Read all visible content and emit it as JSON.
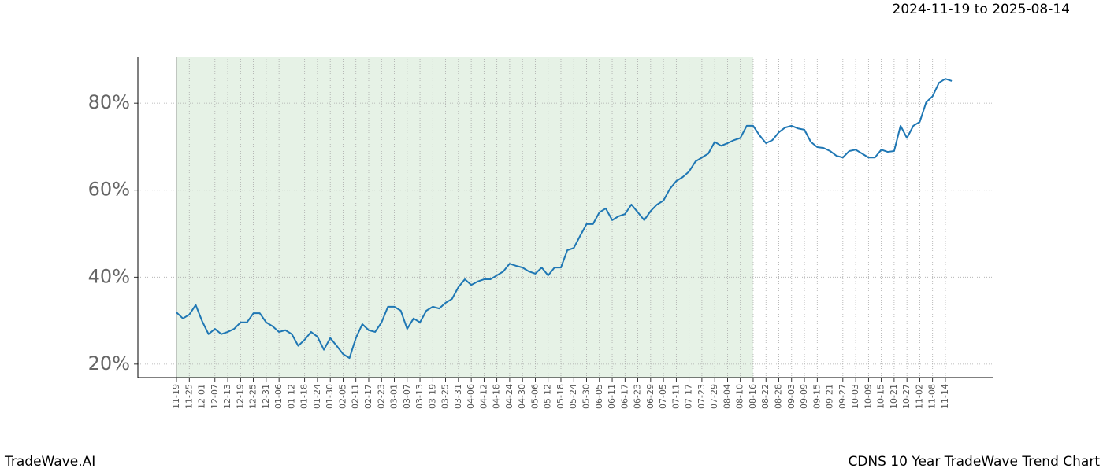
{
  "chart_data": {
    "type": "line",
    "title": "CDNS 10 Year TradeWave Trend Chart",
    "subtitle": "2024-11-19 to 2025-08-14",
    "watermark": "TradeWave.AI",
    "categories": [
      "11-19",
      null,
      "11-25",
      null,
      "12-01",
      null,
      "12-07",
      null,
      "12-13",
      null,
      "12-19",
      null,
      "12-25",
      null,
      "12-31",
      null,
      "01-06",
      null,
      "01-12",
      null,
      "01-18",
      null,
      "01-24",
      null,
      "01-30",
      null,
      "02-05",
      null,
      "02-11",
      null,
      "02-17",
      null,
      "02-23",
      null,
      "03-01",
      null,
      "03-07",
      null,
      "03-13",
      null,
      "03-19",
      null,
      "03-25",
      null,
      "03-31",
      null,
      "04-06",
      null,
      "04-12",
      null,
      "04-18",
      null,
      "04-24",
      null,
      "04-30",
      null,
      "05-06",
      null,
      "05-12",
      null,
      "05-18",
      null,
      "05-24",
      null,
      "05-30",
      null,
      "06-05",
      null,
      "06-11",
      null,
      "06-17",
      null,
      "06-23",
      null,
      "06-29",
      null,
      "07-05",
      null,
      "07-11",
      null,
      "07-17",
      null,
      "07-23",
      null,
      "07-29",
      null,
      "08-04",
      null,
      "08-10",
      null,
      "08-16",
      null,
      "08-22",
      null,
      "08-28",
      null,
      "09-03",
      null,
      "09-09",
      null,
      "09-15",
      null,
      "09-21",
      null,
      "09-27",
      null,
      "10-03",
      null,
      "10-09",
      null,
      "10-15",
      null,
      "10-21",
      null,
      "10-27",
      null,
      "11-02",
      null,
      "11-08",
      null,
      "11-14",
      null
    ],
    "series": [
      {
        "color": "#1f77b4",
        "values": [
          31.9,
          30.5,
          31.4,
          33.6,
          29.9,
          26.9,
          28.1,
          26.9,
          27.4,
          28.1,
          29.6,
          29.6,
          31.7,
          31.7,
          29.6,
          28.7,
          27.4,
          27.8,
          26.9,
          24.2,
          25.6,
          27.4,
          26.3,
          23.3,
          26.0,
          24.2,
          22.3,
          21.4,
          26.0,
          29.2,
          27.8,
          27.4,
          29.6,
          33.2,
          33.2,
          32.3,
          28.1,
          30.5,
          29.6,
          32.3,
          33.2,
          32.8,
          34.1,
          35.0,
          37.7,
          39.5,
          38.2,
          39.0,
          39.5,
          39.5,
          40.4,
          41.3,
          43.1,
          42.6,
          42.2,
          41.3,
          40.8,
          42.2,
          40.4,
          42.2,
          42.2,
          46.2,
          46.7,
          49.5,
          52.2,
          52.2,
          54.9,
          55.8,
          53.1,
          54.0,
          54.5,
          56.7,
          54.9,
          53.1,
          55.2,
          56.7,
          57.6,
          60.3,
          62.1,
          63.0,
          64.3,
          66.6,
          67.5,
          68.4,
          71.1,
          70.2,
          70.8,
          71.5,
          72.0,
          74.8,
          74.8,
          72.6,
          70.8,
          71.5,
          73.3,
          74.4,
          74.8,
          74.2,
          73.9,
          71.1,
          69.9,
          69.7,
          69.0,
          67.9,
          67.5,
          69.0,
          69.3,
          68.4,
          67.5,
          67.5,
          69.3,
          68.8,
          69.0,
          74.8,
          72.0,
          74.8,
          75.7,
          80.2,
          81.6,
          84.7,
          85.6,
          85.1
        ]
      }
    ],
    "highlight_range": [
      0,
      90
    ],
    "highlight_color": "#e6f2e6",
    "ylim": [
      16.9,
      90.7
    ],
    "yticks": [
      {
        "value": 20,
        "label": "20%"
      },
      {
        "value": 40,
        "label": "40%"
      },
      {
        "value": 60,
        "label": "60%"
      },
      {
        "value": 80,
        "label": "80%"
      }
    ],
    "grid": true
  }
}
